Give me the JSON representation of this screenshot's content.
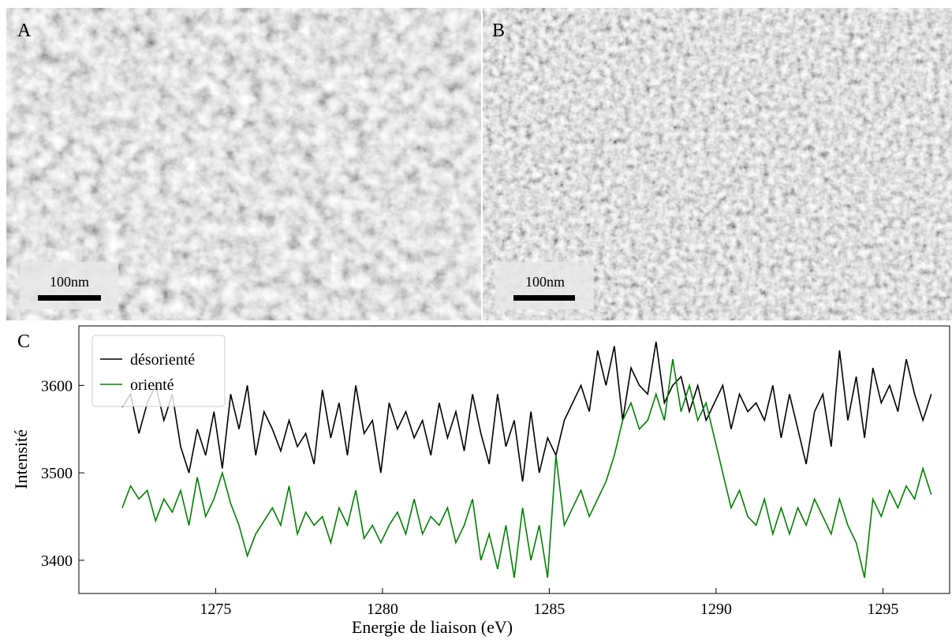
{
  "panels": [
    {
      "label": "A",
      "scale_bar": "100nm"
    },
    {
      "label": "B",
      "scale_bar": "100nm"
    }
  ],
  "chart_data": {
    "type": "line",
    "label": "C",
    "x_label": "Energie de liaison (eV)",
    "y_label": "Intensité",
    "x": [
      1272.2,
      1272.45,
      1272.7,
      1272.95,
      1273.2,
      1273.45,
      1273.7,
      1273.95,
      1274.2,
      1274.45,
      1274.7,
      1274.95,
      1275.2,
      1275.45,
      1275.7,
      1275.95,
      1276.2,
      1276.45,
      1276.7,
      1276.95,
      1277.2,
      1277.45,
      1277.7,
      1277.95,
      1278.2,
      1278.45,
      1278.7,
      1278.95,
      1279.2,
      1279.45,
      1279.7,
      1279.95,
      1280.2,
      1280.45,
      1280.7,
      1280.95,
      1281.2,
      1281.45,
      1281.7,
      1281.95,
      1282.2,
      1282.45,
      1282.7,
      1282.95,
      1283.2,
      1283.45,
      1283.7,
      1283.95,
      1284.2,
      1284.45,
      1284.7,
      1284.95,
      1285.2,
      1285.45,
      1285.7,
      1285.95,
      1286.2,
      1286.45,
      1286.7,
      1286.95,
      1287.2,
      1287.45,
      1287.7,
      1287.95,
      1288.2,
      1288.45,
      1288.7,
      1288.95,
      1289.2,
      1289.45,
      1289.7,
      1289.95,
      1290.2,
      1290.45,
      1290.7,
      1290.95,
      1291.2,
      1291.45,
      1291.7,
      1291.95,
      1292.2,
      1292.45,
      1292.7,
      1292.95,
      1293.2,
      1293.45,
      1293.7,
      1293.95,
      1294.2,
      1294.45,
      1294.7,
      1294.95,
      1295.2,
      1295.45,
      1295.7,
      1295.95,
      1296.2,
      1296.45
    ],
    "series": [
      {
        "name": "désorienté",
        "color": "#000000",
        "values": [
          3575,
          3590,
          3545,
          3580,
          3600,
          3560,
          3590,
          3530,
          3500,
          3550,
          3520,
          3570,
          3505,
          3590,
          3550,
          3600,
          3520,
          3570,
          3550,
          3525,
          3560,
          3530,
          3545,
          3510,
          3595,
          3540,
          3580,
          3520,
          3600,
          3545,
          3560,
          3500,
          3580,
          3550,
          3570,
          3540,
          3560,
          3520,
          3580,
          3540,
          3570,
          3525,
          3590,
          3545,
          3510,
          3590,
          3530,
          3560,
          3490,
          3570,
          3500,
          3540,
          3520,
          3560,
          3580,
          3600,
          3570,
          3640,
          3600,
          3645,
          3560,
          3620,
          3600,
          3590,
          3650,
          3580,
          3600,
          3610,
          3570,
          3600,
          3560,
          3580,
          3600,
          3550,
          3590,
          3570,
          3580,
          3560,
          3600,
          3540,
          3590,
          3550,
          3510,
          3570,
          3590,
          3530,
          3640,
          3560,
          3610,
          3540,
          3620,
          3580,
          3600,
          3570,
          3630,
          3590,
          3560,
          3590
        ]
      },
      {
        "name": "orienté",
        "color": "#008000",
        "values": [
          3460,
          3485,
          3470,
          3480,
          3445,
          3470,
          3455,
          3480,
          3440,
          3495,
          3450,
          3470,
          3500,
          3465,
          3440,
          3405,
          3430,
          3445,
          3460,
          3440,
          3485,
          3430,
          3455,
          3440,
          3450,
          3420,
          3460,
          3440,
          3480,
          3425,
          3440,
          3420,
          3440,
          3455,
          3430,
          3470,
          3430,
          3450,
          3440,
          3460,
          3420,
          3440,
          3470,
          3400,
          3430,
          3390,
          3440,
          3380,
          3460,
          3400,
          3440,
          3380,
          3520,
          3440,
          3460,
          3480,
          3450,
          3470,
          3490,
          3520,
          3560,
          3580,
          3550,
          3560,
          3590,
          3560,
          3630,
          3570,
          3600,
          3560,
          3580,
          3540,
          3500,
          3460,
          3480,
          3450,
          3440,
          3470,
          3430,
          3460,
          3430,
          3460,
          3440,
          3470,
          3450,
          3430,
          3470,
          3440,
          3420,
          3380,
          3470,
          3450,
          3480,
          3460,
          3485,
          3470,
          3505,
          3475
        ]
      }
    ],
    "xlim": [
      1270.9,
      1297.0
    ],
    "ylim": [
      3362,
      3668
    ],
    "xticks": [
      1275,
      1280,
      1285,
      1290,
      1295
    ],
    "yticks": [
      3400,
      3500,
      3600
    ],
    "legend": "upper-left"
  }
}
